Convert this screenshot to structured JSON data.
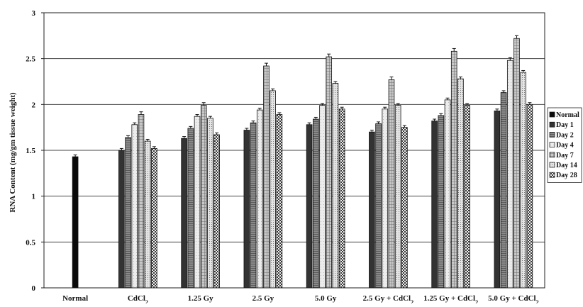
{
  "chart_data": {
    "type": "bar",
    "title": "",
    "xlabel": "",
    "ylabel": "RNA Content (mg/gm tissue weight)",
    "ylim": [
      0,
      3
    ],
    "yticks": [
      "0",
      "0.5",
      "1",
      "1.5",
      "2",
      "2.5",
      "3"
    ],
    "grid": true,
    "legend_position": "right",
    "categories": [
      {
        "pre": "Normal",
        "sub": "",
        "post": ""
      },
      {
        "pre": "CdCl",
        "sub": "2",
        "post": ""
      },
      {
        "pre": "1.25 Gy",
        "sub": "",
        "post": ""
      },
      {
        "pre": "2.5 Gy",
        "sub": "",
        "post": ""
      },
      {
        "pre": "5.0 Gy",
        "sub": "",
        "post": ""
      },
      {
        "pre": "2.5 Gy + CdCl",
        "sub": "2",
        "post": ""
      },
      {
        "pre": "1.25 Gy + CdCl",
        "sub": "2",
        "post": ""
      },
      {
        "pre": "5.0 Gy + CdCl",
        "sub": "2",
        "post": ""
      }
    ],
    "series": [
      {
        "name": "Normal",
        "pattern": "solid-black",
        "values": [
          1.43,
          null,
          null,
          null,
          null,
          null,
          null,
          null
        ],
        "errors": [
          0.02,
          null,
          null,
          null,
          null,
          null,
          null,
          null
        ]
      },
      {
        "name": "Day 1",
        "pattern": "solid-dark",
        "values": [
          null,
          1.5,
          1.63,
          1.72,
          1.78,
          1.7,
          1.82,
          1.93
        ],
        "errors": [
          null,
          0.02,
          0.02,
          0.02,
          0.02,
          0.02,
          0.02,
          0.02
        ]
      },
      {
        "name": "Day 2",
        "pattern": "grey-lines",
        "values": [
          null,
          1.64,
          1.74,
          1.8,
          1.84,
          1.79,
          1.88,
          2.13
        ],
        "errors": [
          null,
          0.02,
          0.02,
          0.02,
          0.02,
          0.02,
          0.02,
          0.02
        ]
      },
      {
        "name": "Day 4",
        "pattern": "light",
        "values": [
          null,
          1.78,
          1.87,
          1.94,
          1.99,
          1.95,
          2.05,
          2.48
        ],
        "errors": [
          null,
          0.02,
          0.02,
          0.02,
          0.02,
          0.02,
          0.02,
          0.03
        ]
      },
      {
        "name": "Day 7",
        "pattern": "grid",
        "values": [
          null,
          1.89,
          1.99,
          2.42,
          2.52,
          2.27,
          2.58,
          2.72
        ],
        "errors": [
          null,
          0.03,
          0.03,
          0.03,
          0.03,
          0.03,
          0.03,
          0.03
        ]
      },
      {
        "name": "Day 14",
        "pattern": "dots",
        "values": [
          null,
          1.6,
          1.85,
          2.15,
          2.23,
          1.99,
          2.28,
          2.35
        ],
        "errors": [
          null,
          0.02,
          0.02,
          0.02,
          0.02,
          0.02,
          0.02,
          0.02
        ]
      },
      {
        "name": "Day 28",
        "pattern": "checker",
        "values": [
          null,
          1.52,
          1.67,
          1.89,
          1.95,
          1.75,
          1.99,
          2.0
        ],
        "errors": [
          null,
          0.02,
          0.02,
          0.02,
          0.02,
          0.02,
          0.02,
          0.02
        ]
      }
    ]
  }
}
